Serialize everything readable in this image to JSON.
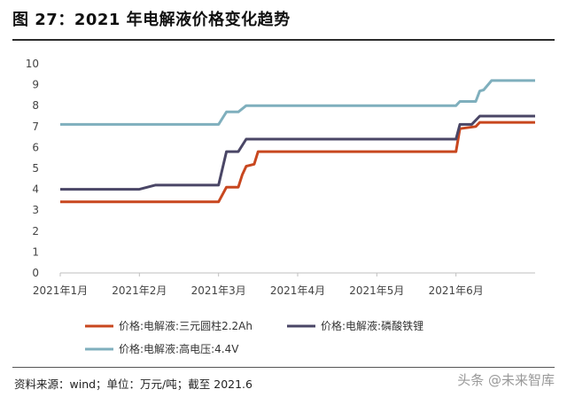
{
  "figure_title": "图 27：2021 年电解液价格变化趋势",
  "source": "资料来源：wind；单位：万元/吨；截至 2021.6",
  "watermark": "头条 @未来智库",
  "chart_data": {
    "type": "line",
    "ylim": [
      0,
      10
    ],
    "yticks": [
      0,
      1,
      2,
      3,
      4,
      5,
      6,
      7,
      8,
      9,
      10
    ],
    "xticks": [
      "2021年1月",
      "2021年2月",
      "2021年3月",
      "2021年4月",
      "2021年5月",
      "2021年6月"
    ],
    "xlim": [
      0,
      6
    ],
    "grid": false,
    "legend_position": "bottom",
    "series": [
      {
        "name": "价格:电解液:三元圆柱2.2Ah",
        "color": "#C8471F",
        "points": [
          [
            0,
            3.4
          ],
          [
            2.0,
            3.4
          ],
          [
            2.1,
            4.1
          ],
          [
            2.25,
            4.1
          ],
          [
            2.3,
            4.7
          ],
          [
            2.35,
            5.1
          ],
          [
            2.45,
            5.2
          ],
          [
            2.5,
            5.8
          ],
          [
            5.0,
            5.8
          ],
          [
            5.05,
            6.9
          ],
          [
            5.25,
            7.0
          ],
          [
            5.3,
            7.2
          ],
          [
            6.0,
            7.2
          ]
        ]
      },
      {
        "name": "价格:电解液:磷酸铁锂",
        "color": "#4A4666",
        "points": [
          [
            0,
            4.0
          ],
          [
            1.0,
            4.0
          ],
          [
            1.2,
            4.2
          ],
          [
            2.0,
            4.2
          ],
          [
            2.1,
            5.8
          ],
          [
            2.25,
            5.8
          ],
          [
            2.35,
            6.4
          ],
          [
            5.0,
            6.4
          ],
          [
            5.05,
            7.1
          ],
          [
            5.2,
            7.1
          ],
          [
            5.3,
            7.5
          ],
          [
            6.0,
            7.5
          ]
        ]
      },
      {
        "name": "价格:电解液:高电压:4.4V",
        "color": "#7FAFBD",
        "points": [
          [
            0,
            7.1
          ],
          [
            2.0,
            7.1
          ],
          [
            2.1,
            7.7
          ],
          [
            2.25,
            7.7
          ],
          [
            2.35,
            8.0
          ],
          [
            5.0,
            8.0
          ],
          [
            5.05,
            8.2
          ],
          [
            5.25,
            8.2
          ],
          [
            5.3,
            8.7
          ],
          [
            5.35,
            8.75
          ],
          [
            5.45,
            9.2
          ],
          [
            6.0,
            9.2
          ]
        ]
      }
    ]
  }
}
